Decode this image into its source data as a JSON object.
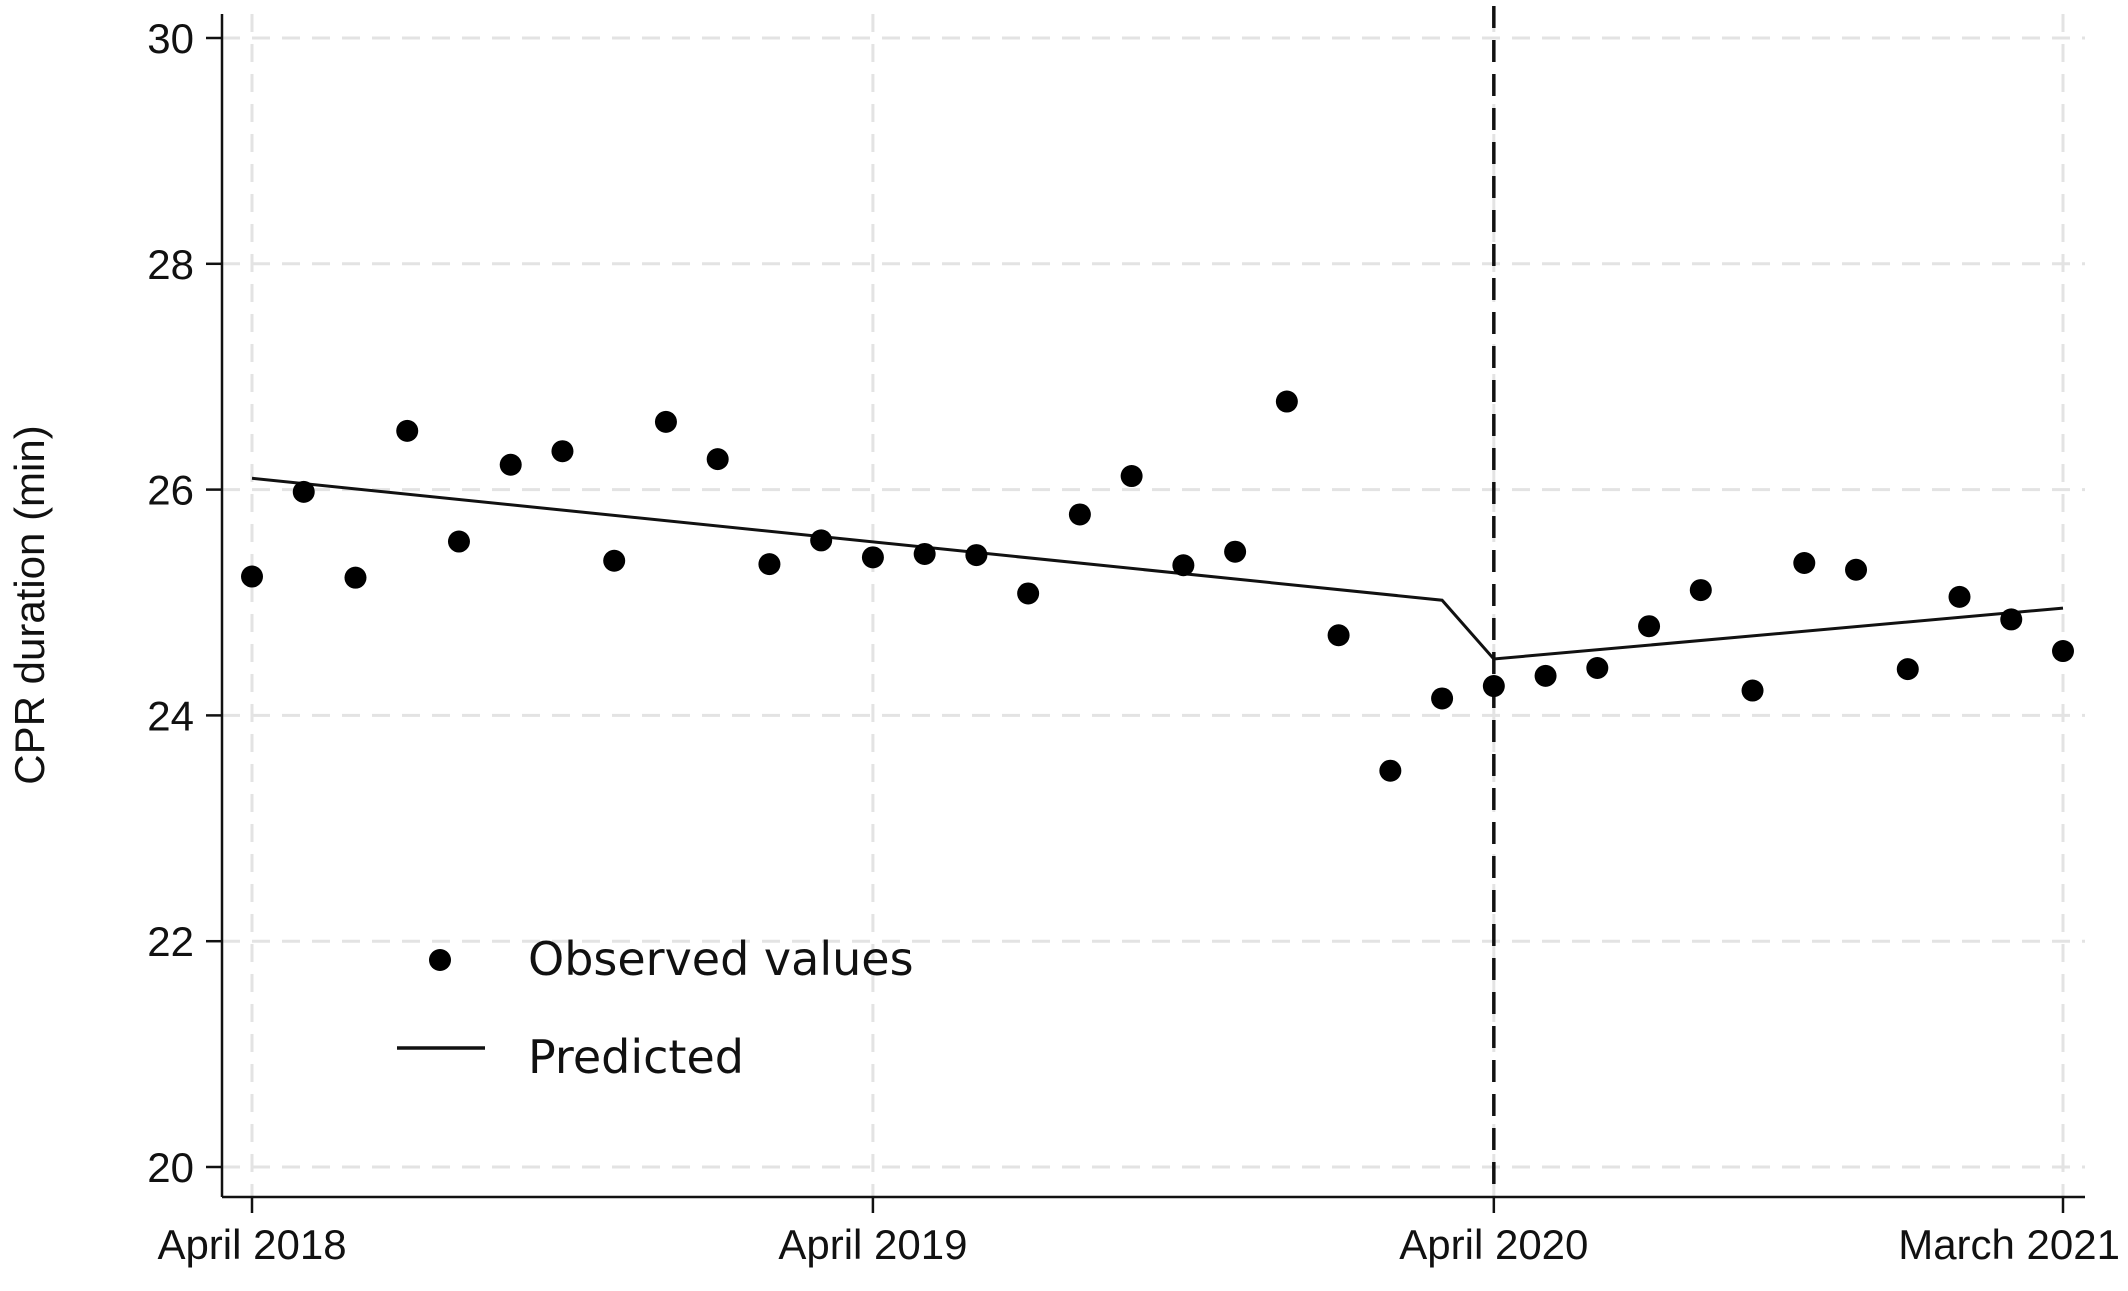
{
  "chart_data": {
    "type": "scatter",
    "title": "",
    "xlabel": "",
    "ylabel": "CPR duration (min)",
    "ylim": [
      20,
      30
    ],
    "yticks": [
      20,
      22,
      24,
      26,
      28,
      30
    ],
    "xlim": [
      "2018-04",
      "2021-03"
    ],
    "xticks": [
      {
        "date": "2018-04",
        "label": "April 2018"
      },
      {
        "date": "2019-04",
        "label": "April 2019"
      },
      {
        "date": "2020-04",
        "label": "April 2020"
      },
      {
        "date": "2021-03",
        "label": "March 2021"
      }
    ],
    "grid": true,
    "intervention_line": "2020-04",
    "legend_position": "bottom-left",
    "legend": {
      "observed": "Observed values",
      "predicted": "Predicted"
    },
    "series": [
      {
        "name": "Observed values",
        "style": "markers",
        "x": [
          "2018-04",
          "2018-05",
          "2018-06",
          "2018-07",
          "2018-08",
          "2018-09",
          "2018-10",
          "2018-11",
          "2018-12",
          "2019-01",
          "2019-02",
          "2019-03",
          "2019-04",
          "2019-05",
          "2019-06",
          "2019-07",
          "2019-08",
          "2019-09",
          "2019-10",
          "2019-11",
          "2019-12",
          "2020-01",
          "2020-02",
          "2020-03",
          "2020-04",
          "2020-05",
          "2020-06",
          "2020-07",
          "2020-08",
          "2020-09",
          "2020-10",
          "2020-11",
          "2020-12",
          "2021-01",
          "2021-02",
          "2021-03"
        ],
        "y": [
          25.23,
          25.98,
          25.22,
          26.52,
          25.54,
          26.22,
          26.34,
          25.37,
          26.6,
          26.27,
          25.34,
          25.55,
          25.4,
          25.43,
          25.42,
          25.08,
          25.78,
          26.12,
          25.33,
          25.45,
          26.78,
          24.71,
          23.51,
          24.15,
          24.26,
          24.35,
          24.42,
          24.79,
          25.11,
          24.22,
          25.35,
          25.29,
          24.41,
          25.05,
          24.85,
          24.57
        ]
      },
      {
        "name": "Predicted",
        "style": "line",
        "segments": [
          {
            "x": [
              "2018-04",
              "2020-03"
            ],
            "y": [
              26.1,
              25.02
            ]
          },
          {
            "x": [
              "2020-03",
              "2020-04"
            ],
            "y": [
              25.02,
              24.5
            ]
          },
          {
            "x": [
              "2020-04",
              "2021-03"
            ],
            "y": [
              24.5,
              24.95
            ]
          }
        ]
      }
    ]
  }
}
